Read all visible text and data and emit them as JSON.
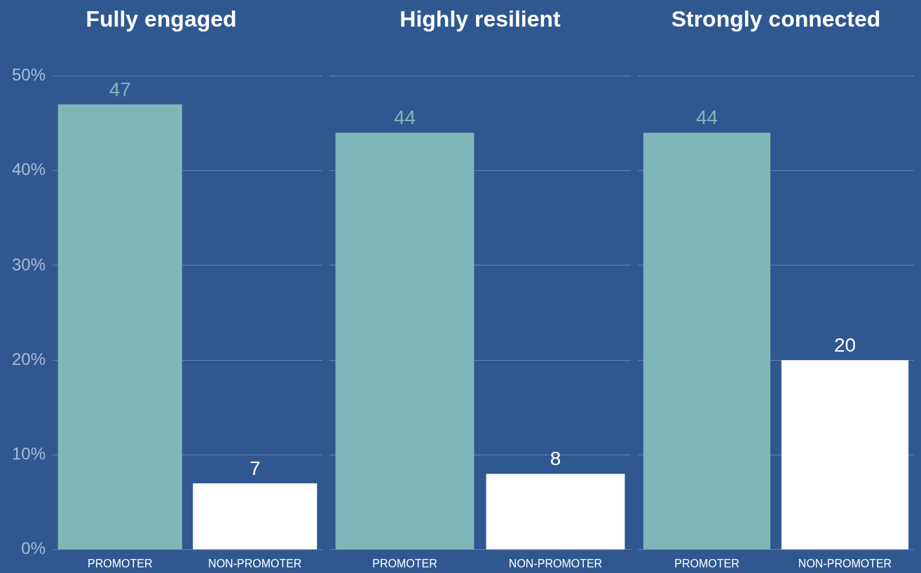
{
  "chart_data": [
    {
      "type": "bar",
      "title": "Fully engaged",
      "categories": [
        "PROMOTER",
        "NON-PROMOTER"
      ],
      "values": [
        47,
        7
      ],
      "colors": [
        "#7fb6b8",
        "#ffffff"
      ],
      "ylim": [
        0,
        50
      ],
      "yticks": [
        {
          "value": 0,
          "label": "0%"
        },
        {
          "value": 10,
          "label": "10%"
        },
        {
          "value": 20,
          "label": "20%"
        },
        {
          "value": 30,
          "label": "30%"
        },
        {
          "value": 40,
          "label": "40%"
        },
        {
          "value": 50,
          "label": "50%"
        }
      ],
      "grid": "y",
      "data_labels": true
    },
    {
      "type": "bar",
      "title": "Highly resilient",
      "categories": [
        "PROMOTER",
        "NON-PROMOTER"
      ],
      "values": [
        44,
        8
      ],
      "colors": [
        "#7fb6b8",
        "#ffffff"
      ],
      "ylim": [
        0,
        50
      ],
      "yticks": [
        0,
        10,
        20,
        30,
        40,
        50
      ],
      "grid": "y",
      "data_labels": true,
      "tick_labels": "x"
    },
    {
      "type": "bar",
      "title": "Strongly connected",
      "categories": [
        "PROMOTER",
        "NON-PROMOTER"
      ],
      "values": [
        44,
        20
      ],
      "colors": [
        "#7fb6b8",
        "#ffffff"
      ],
      "ylim": [
        0,
        50
      ],
      "yticks": [
        0,
        10,
        20,
        30,
        40,
        50
      ],
      "grid": "y",
      "data_labels": true,
      "tick_labels": "x"
    }
  ]
}
